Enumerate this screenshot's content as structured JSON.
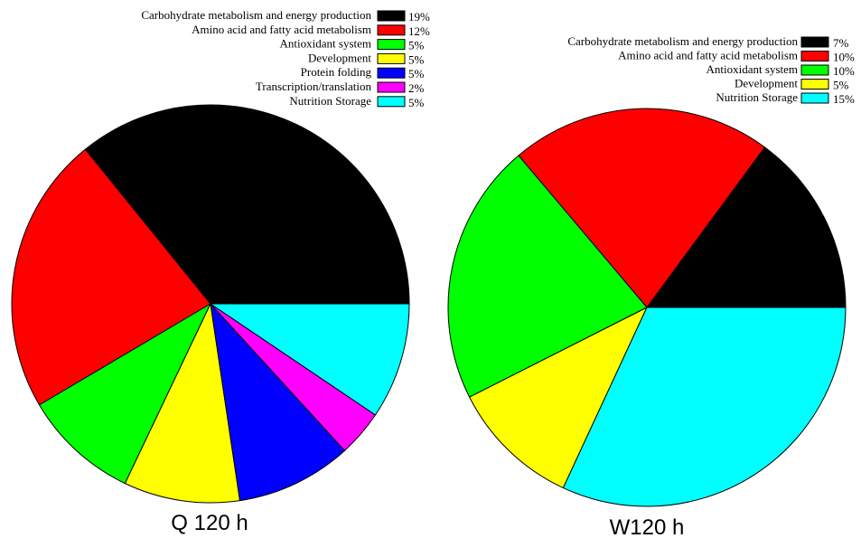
{
  "chart_data": [
    {
      "type": "pie",
      "label": "Q 120 h",
      "legend_placement": "top",
      "series": [
        {
          "name": "Carbohydrate metabolism and energy production",
          "value": 19,
          "percent_label": "19%",
          "color": "#000000"
        },
        {
          "name": "Amino acid and fatty acid metabolism",
          "value": 12,
          "percent_label": "12%",
          "color": "#ff0000"
        },
        {
          "name": "Antioxidant system",
          "value": 5,
          "percent_label": "5%",
          "color": "#00ff00"
        },
        {
          "name": "Development",
          "value": 5,
          "percent_label": "5%",
          "color": "#ffff00"
        },
        {
          "name": "Protein folding",
          "value": 5,
          "percent_label": "5%",
          "color": "#0000ff"
        },
        {
          "name": "Transcription/translation",
          "value": 2,
          "percent_label": "2%",
          "color": "#ff00ff"
        },
        {
          "name": "Nutrition Storage",
          "value": 5,
          "percent_label": "5%",
          "color": "#00ffff"
        }
      ]
    },
    {
      "type": "pie",
      "label": "W120 h",
      "legend_placement": "top",
      "series": [
        {
          "name": "Carbohydrate metabolism and energy production",
          "value": 7,
          "percent_label": "7%",
          "color": "#000000"
        },
        {
          "name": "Amino acid and fatty acid metabolism",
          "value": 10,
          "percent_label": "10%",
          "color": "#ff0000"
        },
        {
          "name": "Antioxidant system",
          "value": 10,
          "percent_label": "10%",
          "color": "#00ff00"
        },
        {
          "name": "Development",
          "value": 5,
          "percent_label": "5%",
          "color": "#ffff00"
        },
        {
          "name": "Nutrition Storage",
          "value": 15,
          "percent_label": "15%",
          "color": "#00ffff"
        }
      ]
    }
  ]
}
